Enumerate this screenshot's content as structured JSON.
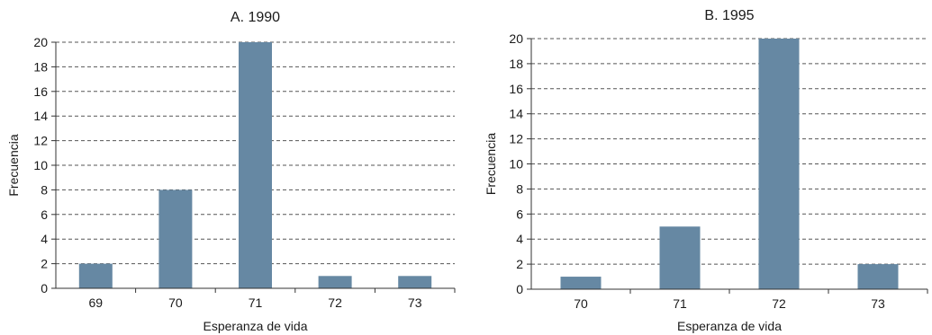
{
  "colors": {
    "bar": "#6688a3",
    "axis": "#333333",
    "grid": "#555555",
    "text": "#1a1a1a"
  },
  "chart_data": [
    {
      "type": "bar",
      "title": "A. 1990",
      "xlabel": "Esperanza de vida",
      "ylabel": "Frecuencia",
      "categories": [
        "69",
        "70",
        "71",
        "72",
        "73"
      ],
      "values": [
        2,
        8,
        20,
        1,
        1
      ],
      "ylim": [
        0,
        20
      ],
      "yticks": [
        0,
        2,
        4,
        6,
        8,
        10,
        12,
        14,
        16,
        18,
        20
      ],
      "grid": true
    },
    {
      "type": "bar",
      "title": "B. 1995",
      "xlabel": "Esperanza de vida",
      "ylabel": "Frecuencia",
      "categories": [
        "70",
        "71",
        "72",
        "73"
      ],
      "values": [
        1,
        5,
        20,
        2
      ],
      "ylim": [
        0,
        20
      ],
      "yticks": [
        0,
        2,
        4,
        6,
        8,
        10,
        12,
        14,
        16,
        18,
        20
      ],
      "grid": true
    }
  ]
}
